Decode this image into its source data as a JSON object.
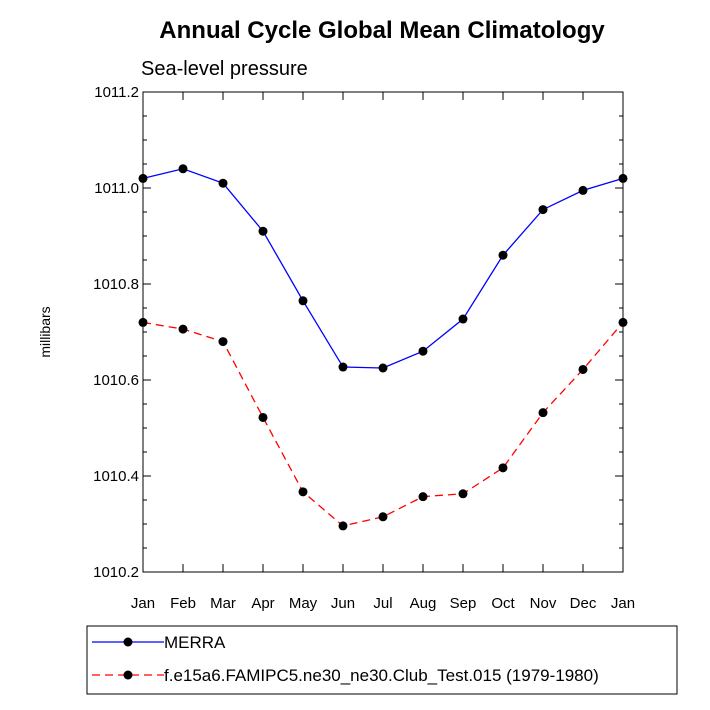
{
  "chart_data": {
    "type": "line",
    "title": "Annual Cycle Global Mean Climatology",
    "subtitle": "Sea-level pressure",
    "xlabel": "",
    "ylabel": "millibars",
    "categories": [
      "Jan",
      "Feb",
      "Mar",
      "Apr",
      "May",
      "Jun",
      "Jul",
      "Aug",
      "Sep",
      "Oct",
      "Nov",
      "Dec",
      "Jan"
    ],
    "ylim": [
      1010.2,
      1011.2
    ],
    "yticks": [
      1010.2,
      1010.4,
      1010.6,
      1010.8,
      1011.0,
      1011.2
    ],
    "ytick_labels": [
      "1010.2",
      "1010.4",
      "1010.6",
      "1010.8",
      "1011.0",
      "1011.2"
    ],
    "grid": false,
    "legend_position": "bottom",
    "series": [
      {
        "name": "MERRA",
        "color": "#0000ff",
        "line_style": "solid",
        "marker": "filled-circle",
        "values": [
          1011.02,
          1011.04,
          1011.01,
          1010.91,
          1010.765,
          1010.627,
          1010.625,
          1010.66,
          1010.727,
          1010.86,
          1010.955,
          1010.995,
          1011.02
        ]
      },
      {
        "name": "f.e15a6.FAMIPC5.ne30_ne30.Club_Test.015 (1979-1980)",
        "color": "#ff0000",
        "line_style": "dashed",
        "marker": "filled-circle",
        "values": [
          1010.72,
          1010.706,
          1010.68,
          1010.522,
          1010.367,
          1010.296,
          1010.315,
          1010.357,
          1010.363,
          1010.417,
          1010.532,
          1010.622,
          1010.72
        ]
      }
    ]
  }
}
